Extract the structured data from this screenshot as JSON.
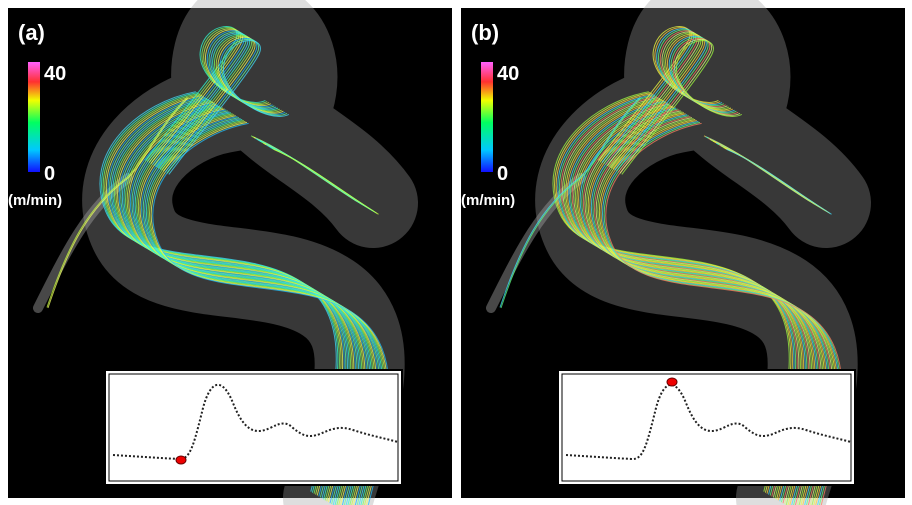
{
  "panels": [
    {
      "label": "(a)",
      "colorbar": {
        "max": 40,
        "min": 0,
        "unit": "(m/min)"
      }
    },
    {
      "label": "(b)",
      "colorbar": {
        "max": 40,
        "min": 0,
        "unit": "(m/min)"
      }
    }
  ]
}
